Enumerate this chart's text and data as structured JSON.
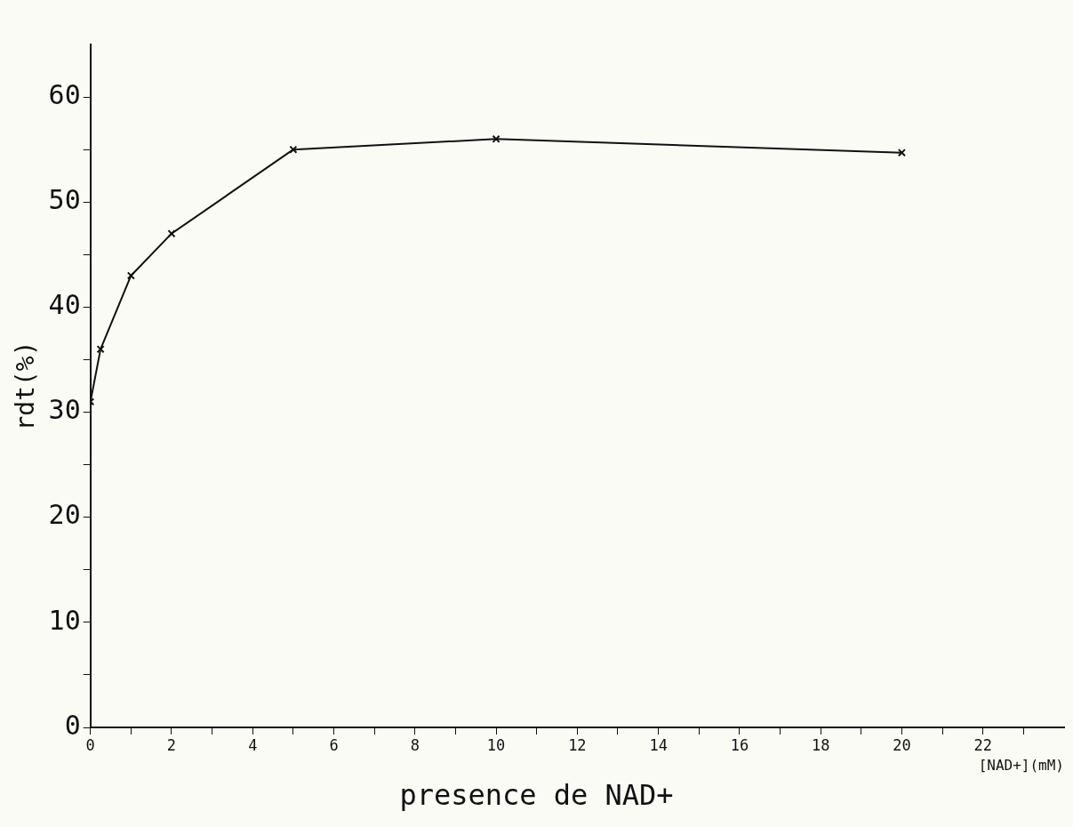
{
  "chart_data": {
    "type": "line",
    "title": "presence de NAD+",
    "xlabel": "[NAD+](mM)",
    "ylabel": "rdt(%)",
    "x": [
      0,
      0.25,
      1,
      2,
      5,
      10,
      20
    ],
    "series": [
      {
        "color": "#111111",
        "values": [
          31,
          36,
          43,
          47,
          55,
          56,
          54.7
        ]
      }
    ],
    "xlim": [
      0,
      24
    ],
    "xticks": [
      0,
      {
        "value": 1,
        "label": null
      },
      2,
      {
        "value": 3,
        "label": null
      },
      4,
      {
        "value": 5,
        "label": null
      },
      6,
      {
        "value": 7,
        "label": null
      },
      8,
      {
        "value": 9,
        "label": null
      },
      10,
      {
        "value": 11,
        "label": null
      },
      12,
      {
        "value": 13,
        "label": null
      },
      14,
      {
        "value": 15,
        "label": null
      },
      16,
      {
        "value": 17,
        "label": null
      },
      18,
      {
        "value": 19,
        "label": null
      },
      20,
      {
        "value": 21,
        "label": null
      },
      22,
      {
        "value": 23,
        "label": null
      }
    ],
    "ylim": [
      0,
      65
    ],
    "yticks": [
      0,
      {
        "value": 5,
        "label": null
      },
      10,
      {
        "value": 15,
        "label": null
      },
      20,
      {
        "value": 25,
        "label": null
      },
      30,
      {
        "value": 35,
        "label": null
      },
      40,
      {
        "value": 45,
        "label": null
      },
      50,
      {
        "value": 55,
        "label": null
      },
      60
    ],
    "grid": false,
    "legend": false,
    "marker": "cross",
    "line_style": "solid"
  }
}
